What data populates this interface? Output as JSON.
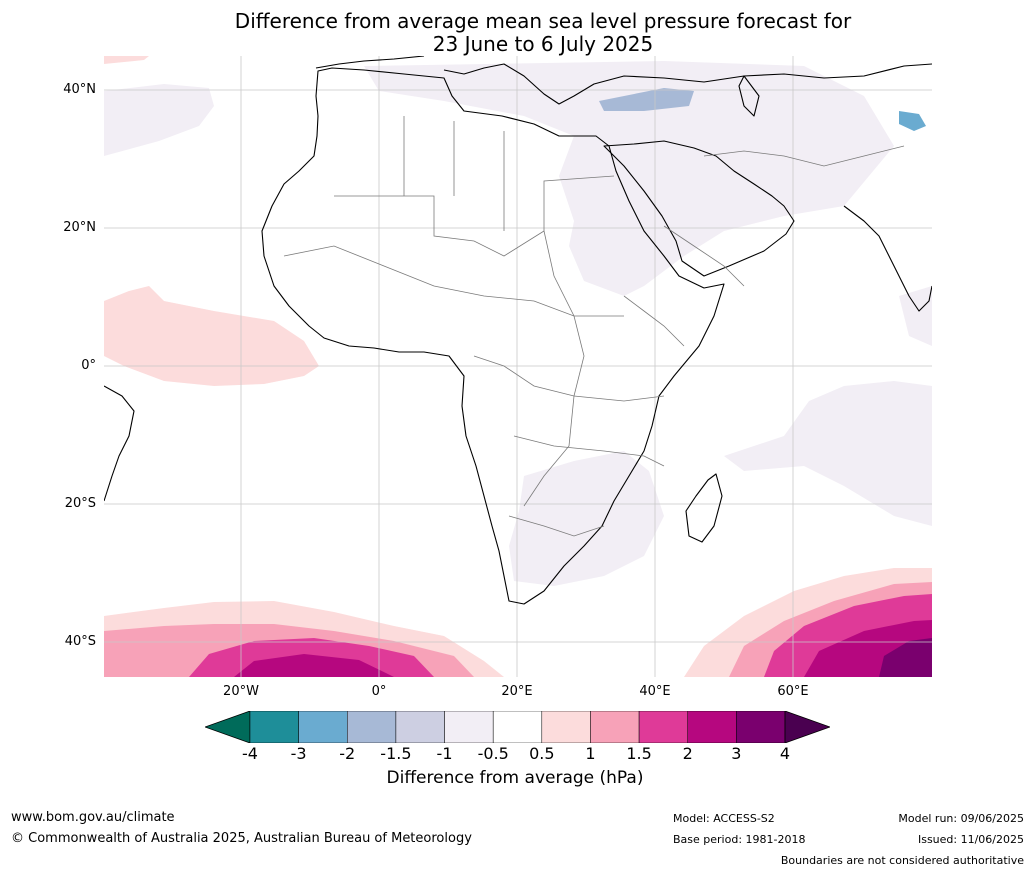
{
  "title_line1": "Difference from average mean sea level pressure forecast for",
  "title_line2": "23 June to 6 July 2025",
  "lat_ticks": [
    "40°N",
    "20°N",
    "0°",
    "20°S",
    "40°S"
  ],
  "lon_ticks": [
    "20°W",
    "0°",
    "20°E",
    "40°E",
    "60°E"
  ],
  "colorbar": {
    "labels": [
      "-4",
      "-3",
      "-2",
      "-1.5",
      "-1",
      "-0.5",
      "0.5",
      "1",
      "1.5",
      "2",
      "3",
      "4"
    ],
    "colors": [
      "#006b5a",
      "#1e8e99",
      "#6aabd0",
      "#a7b9d6",
      "#cdcfe2",
      "#f2eef5",
      "#ffffff",
      "#fcdcdc",
      "#f7a2b8",
      "#df3a98",
      "#b6077f",
      "#7a006e",
      "#4a0050"
    ],
    "title": "Difference from average (hPa)"
  },
  "footer": {
    "website": "www.bom.gov.au/climate",
    "copyright": "© Commonwealth of Australia 2025, Australian Bureau of Meteorology",
    "model": "Model: ACCESS-S2",
    "base_period": "Base period: 1981-2018",
    "model_run": "Model run: 09/06/2025",
    "issued": "Issued: 11/06/2025",
    "disclaimer": "Boundaries are not considered authoritative"
  }
}
